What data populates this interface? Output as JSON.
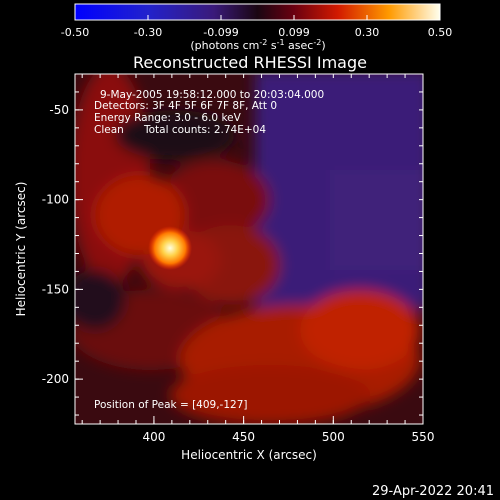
{
  "colorbar": {
    "ticks": [
      "-0.50",
      "-0.30",
      "-0.099",
      "0.099",
      "0.30",
      "0.50"
    ],
    "units_prefix": "(photons cm",
    "units_exp1": "-2",
    "units_mid": " s",
    "units_exp2": "-1",
    "units_mid2": " asec",
    "units_exp3": "-2",
    "units_suffix": ")"
  },
  "title": "Reconstructed RHESSI Image",
  "annotations": {
    "time_range": "9-May-2005 19:58:12.000 to 20:03:04.000",
    "detectors": "Detectors: 3F 4F 5F 6F 7F 8F, Att 0",
    "energy_range": "Energy Range: 3.0 - 6.0 keV",
    "clean_label": "Clean",
    "total_counts": "Total counts: 2.74E+04",
    "peak_position": "Position of Peak = [409,-127]"
  },
  "axes": {
    "xlabel": "Heliocentric X (arcsec)",
    "ylabel": "Heliocentric Y (arcsec)",
    "xticks": [
      "400",
      "450",
      "500",
      "550"
    ],
    "yticks": [
      "-50",
      "-100",
      "-150",
      "-200"
    ]
  },
  "footer_timestamp": "29-Apr-2022 20:41",
  "image": {
    "x_range": [
      356,
      550
    ],
    "y_range": [
      -225,
      -30
    ],
    "peak_x": 409,
    "peak_y": -127,
    "peak_value": 0.5
  }
}
